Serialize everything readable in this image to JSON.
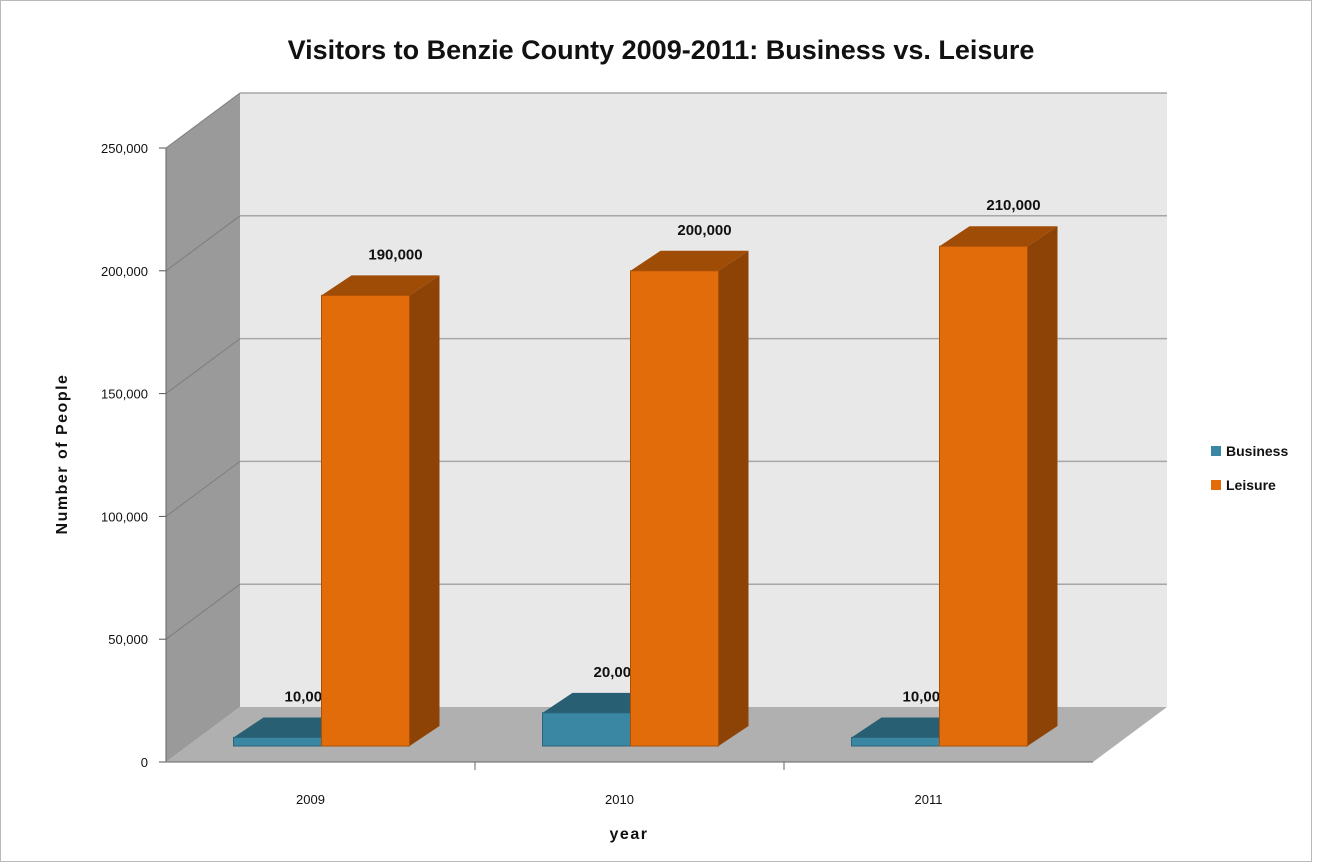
{
  "chart_data": {
    "type": "bar",
    "title": "Visitors to Benzie County 2009-2011: Business vs. Leisure",
    "xlabel": "year",
    "ylabel": "Number of People",
    "categories": [
      "2009",
      "2010",
      "2011"
    ],
    "y_ticks": [
      "0",
      "50,000",
      "100,000",
      "150,000",
      "200,000",
      "250,000"
    ],
    "ylim": [
      0,
      250000
    ],
    "grid": true,
    "legend_position": "right",
    "series": [
      {
        "name": "Business",
        "color": "#3a87a4",
        "values": [
          10000,
          20000,
          10000
        ],
        "labels": [
          "10,000",
          "20,000",
          "10,000"
        ]
      },
      {
        "name": "Leisure",
        "color": "#e36c0a",
        "values": [
          190000,
          200000,
          210000
        ],
        "labels": [
          "190,000",
          "200,000",
          "210,000"
        ]
      }
    ]
  }
}
